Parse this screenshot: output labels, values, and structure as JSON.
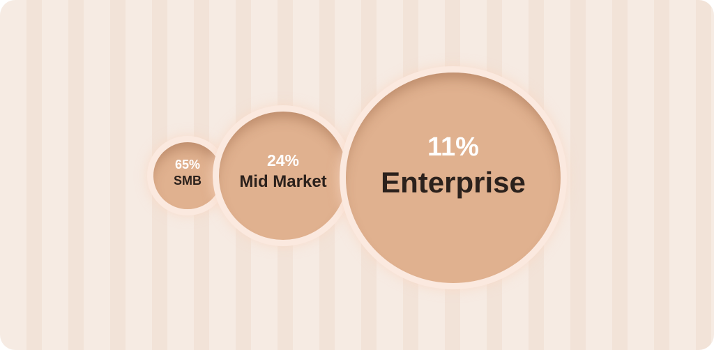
{
  "segments": [
    {
      "percent": "65%",
      "label": "SMB"
    },
    {
      "percent": "24%",
      "label": "Mid Market"
    },
    {
      "percent": "11%",
      "label": "Enterprise"
    }
  ],
  "colors": {
    "background": "#f4e6dc",
    "bubble_fill": "#e0b18f",
    "bubble_ring": "#fbe9df",
    "percent_text": "#ffffff",
    "label_text": "#2b211c"
  }
}
